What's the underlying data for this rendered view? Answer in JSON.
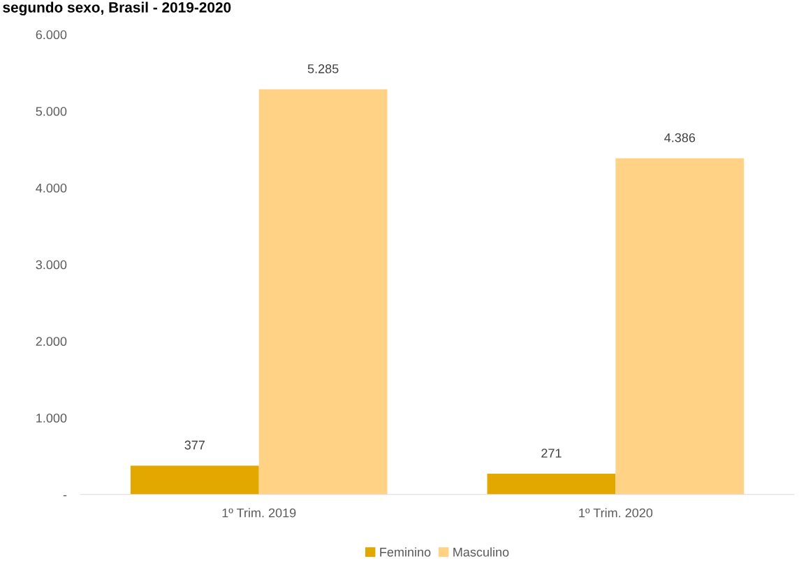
{
  "chart_data": {
    "type": "bar",
    "title": "segundo sexo, Brasil - 2019-2020",
    "categories": [
      "1º Trim. 2019",
      "1º Trim. 2020"
    ],
    "series": [
      {
        "name": "Feminino",
        "color": "#e3a800",
        "values": [
          377,
          271
        ],
        "value_labels": [
          "377",
          "271"
        ]
      },
      {
        "name": "Masculino",
        "color": "#ffd286",
        "values": [
          5285,
          4386
        ],
        "value_labels": [
          "5.285",
          "4.386"
        ]
      }
    ],
    "ylim": [
      0,
      6000
    ],
    "yticks": [
      {
        "value": 0,
        "label": "-"
      },
      {
        "value": 1000,
        "label": "1.000"
      },
      {
        "value": 2000,
        "label": "2.000"
      },
      {
        "value": 3000,
        "label": "3.000"
      },
      {
        "value": 4000,
        "label": "4.000"
      },
      {
        "value": 5000,
        "label": "5.000"
      },
      {
        "value": 6000,
        "label": "6.000"
      }
    ],
    "grid": false,
    "legend": "bottom"
  }
}
